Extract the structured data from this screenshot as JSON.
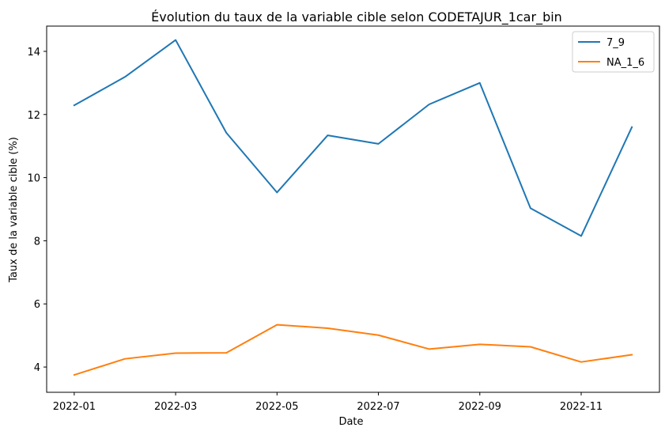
{
  "chart_data": {
    "type": "line",
    "title": "Évolution du taux de la variable cible selon CODETAJUR_1car_bin",
    "xlabel": "Date",
    "ylabel": "Taux de la variable cible (%)",
    "x": [
      "2022-01",
      "2022-02",
      "2022-03",
      "2022-04",
      "2022-05",
      "2022-06",
      "2022-07",
      "2022-08",
      "2022-09",
      "2022-10",
      "2022-11",
      "2022-12"
    ],
    "x_ticks": [
      "2022-01",
      "2022-03",
      "2022-05",
      "2022-07",
      "2022-09",
      "2022-11"
    ],
    "y_ticks": [
      4,
      6,
      8,
      10,
      12,
      14
    ],
    "ylim": [
      3.2,
      14.8
    ],
    "grid": false,
    "legend_position": "top-right",
    "series": [
      {
        "name": "7_9",
        "color": "#1f77b4",
        "values": [
          12.29,
          13.19,
          14.36,
          11.42,
          9.53,
          11.34,
          11.07,
          12.32,
          13.0,
          9.03,
          8.15,
          11.6
        ]
      },
      {
        "name": "NA_1_6",
        "color": "#ff7f0e",
        "values": [
          3.75,
          4.26,
          4.44,
          4.45,
          5.34,
          5.23,
          5.01,
          4.57,
          4.72,
          4.64,
          4.16,
          4.39
        ]
      }
    ]
  }
}
